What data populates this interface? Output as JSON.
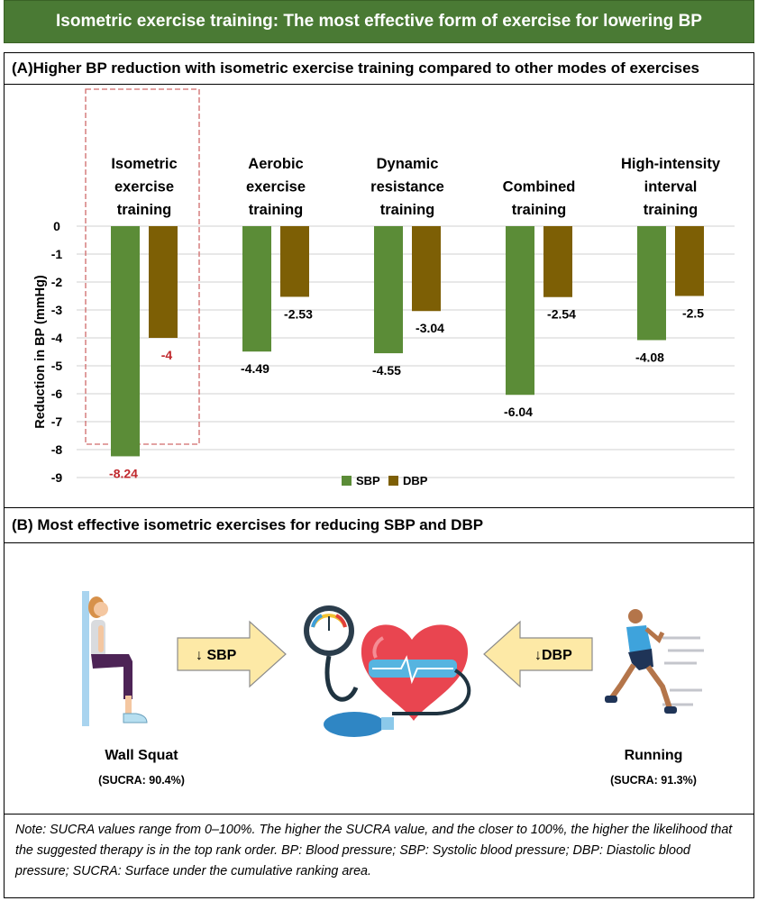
{
  "title": "Isometric exercise training: The most effective form of exercise for lowering BP",
  "panel_a": {
    "heading": "(A)Higher BP reduction with isometric exercise training compared to other modes of exercises"
  },
  "chart_data": {
    "type": "bar",
    "title": "",
    "xlabel": "",
    "ylabel": "Reduction in BP (mmHg)",
    "ylim": [
      -9,
      0
    ],
    "yticks": [
      "0",
      "-1",
      "-2",
      "-3",
      "-4",
      "-5",
      "-6",
      "-7",
      "-8",
      "-9"
    ],
    "categories": [
      [
        "Isometric",
        "exercise",
        "training"
      ],
      [
        "Aerobic",
        "exercise",
        "training"
      ],
      [
        "Dynamic",
        "resistance",
        "training"
      ],
      [
        "Combined",
        "training"
      ],
      [
        "High-intensity",
        "interval",
        "training"
      ]
    ],
    "series": [
      {
        "name": "SBP",
        "color": "#5b8c37",
        "values": [
          -8.24,
          -4.49,
          -4.55,
          -6.04,
          -4.08
        ],
        "labels": [
          "-8.24",
          "-4.49",
          "-4.55",
          "-6.04",
          "-4.08"
        ]
      },
      {
        "name": "DBP",
        "color": "#7d5f05",
        "values": [
          -4,
          -2.53,
          -3.04,
          -2.54,
          -2.5
        ],
        "labels": [
          "-4",
          "-2.53",
          "-3.04",
          "-2.54",
          "-2.5"
        ]
      }
    ],
    "highlight_index": 0,
    "highlight_label_color": "#c0282d",
    "legend": [
      "SBP",
      "DBP"
    ],
    "legend_position": "bottom-center",
    "grid": true
  },
  "panel_b": {
    "heading": "(B) Most effective isometric exercises for reducing SBP and DBP",
    "left": {
      "name": "Wall Squat",
      "sucra": "(SUCRA: 90.4%)",
      "arrow": "↓ SBP"
    },
    "right": {
      "name": "Running",
      "sucra": "(SUCRA: 91.3%)",
      "arrow": "↓DBP"
    }
  },
  "note": "Note: SUCRA values range from 0–100%. The higher the SUCRA value, and the closer to 100%, the higher the likelihood that the suggested therapy is in the top rank order. BP: Blood pressure; SBP: Systolic blood pressure; DBP: Diastolic blood pressure; SUCRA: Surface under the cumulative ranking area."
}
